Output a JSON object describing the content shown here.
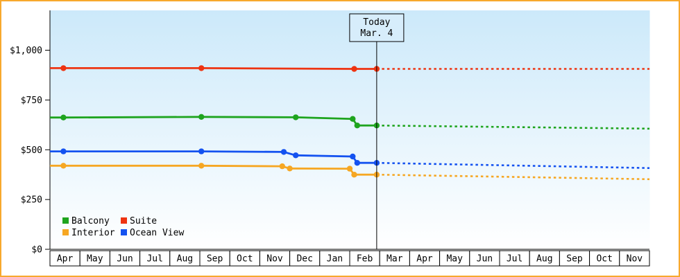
{
  "page": {
    "frame_border_color": "#f7a82d",
    "background": "#ffffff"
  },
  "chart_data": {
    "type": "line",
    "title": "",
    "xlabel": "",
    "ylabel": "",
    "x_axis": {
      "categories": [
        "Apr",
        "May",
        "Jun",
        "Jul",
        "Aug",
        "Sep",
        "Oct",
        "Nov",
        "Dec",
        "Jan",
        "Feb",
        "Mar",
        "Apr",
        "May",
        "Jun",
        "Jul",
        "Aug",
        "Sep",
        "Oct",
        "Nov"
      ]
    },
    "y_axis": {
      "ticks": [
        {
          "label": "$0",
          "value": 0
        },
        {
          "label": "$250",
          "value": 250
        },
        {
          "label": "$500",
          "value": 500
        },
        {
          "label": "$750",
          "value": 750
        },
        {
          "label": "$1,000",
          "value": 1000
        }
      ],
      "range": [
        0,
        1200
      ]
    },
    "today_marker": {
      "title": "Today",
      "date": "Mar. 4",
      "x": 10.9
    },
    "plot_colors": {
      "bg_top": "#cce9fa",
      "bg_bottom": "#ffffff",
      "axis": "#000000",
      "today_box_fill": "#d7edfb"
    },
    "series": [
      {
        "name": "Suite",
        "color": "#ee3311",
        "history": [
          [
            0,
            910
          ],
          [
            0.45,
            910
          ],
          [
            5.05,
            910
          ],
          [
            10.15,
            906
          ],
          [
            10.9,
            906
          ]
        ],
        "markers": [
          [
            0.45,
            910
          ],
          [
            5.05,
            910
          ],
          [
            10.15,
            906
          ],
          [
            10.9,
            906
          ]
        ],
        "forecast": [
          [
            10.9,
            906
          ],
          [
            20,
            906
          ]
        ]
      },
      {
        "name": "Balcony",
        "color": "#1ea41e",
        "history": [
          [
            0,
            662
          ],
          [
            0.45,
            662
          ],
          [
            5.05,
            665
          ],
          [
            8.2,
            663
          ],
          [
            10.1,
            655
          ],
          [
            10.25,
            622
          ],
          [
            10.9,
            622
          ]
        ],
        "markers": [
          [
            0.45,
            662
          ],
          [
            5.05,
            665
          ],
          [
            8.2,
            663
          ],
          [
            10.1,
            655
          ],
          [
            10.25,
            622
          ],
          [
            10.9,
            622
          ]
        ],
        "forecast": [
          [
            10.9,
            622
          ],
          [
            20,
            606
          ]
        ]
      },
      {
        "name": "Ocean View",
        "color": "#1452f0",
        "history": [
          [
            0,
            492
          ],
          [
            0.45,
            492
          ],
          [
            5.05,
            492
          ],
          [
            7.8,
            489
          ],
          [
            8.2,
            472
          ],
          [
            10.1,
            466
          ],
          [
            10.25,
            434
          ],
          [
            10.9,
            434
          ]
        ],
        "markers": [
          [
            0.45,
            492
          ],
          [
            5.05,
            492
          ],
          [
            7.8,
            489
          ],
          [
            8.2,
            472
          ],
          [
            10.1,
            466
          ],
          [
            10.25,
            434
          ],
          [
            10.9,
            434
          ]
        ],
        "forecast": [
          [
            10.9,
            434
          ],
          [
            20,
            408
          ]
        ]
      },
      {
        "name": "Interior",
        "color": "#f6a723",
        "history": [
          [
            0,
            420
          ],
          [
            0.45,
            420
          ],
          [
            5.05,
            420
          ],
          [
            7.75,
            417
          ],
          [
            8.0,
            406
          ],
          [
            10.0,
            405
          ],
          [
            10.15,
            375
          ],
          [
            10.9,
            375
          ]
        ],
        "markers": [
          [
            0.45,
            420
          ],
          [
            5.05,
            420
          ],
          [
            7.75,
            417
          ],
          [
            8.0,
            406
          ],
          [
            10.0,
            405
          ],
          [
            10.15,
            375
          ],
          [
            10.9,
            375
          ]
        ],
        "forecast": [
          [
            10.9,
            375
          ],
          [
            20,
            352
          ]
        ]
      }
    ],
    "legend": {
      "position": "bottom-left",
      "rows": [
        [
          {
            "label": "Balcony",
            "color": "#1ea41e"
          },
          {
            "label": "Suite",
            "color": "#ee3311"
          }
        ],
        [
          {
            "label": "Interior",
            "color": "#f6a723"
          },
          {
            "label": "Ocean View",
            "color": "#1452f0"
          }
        ]
      ]
    }
  }
}
